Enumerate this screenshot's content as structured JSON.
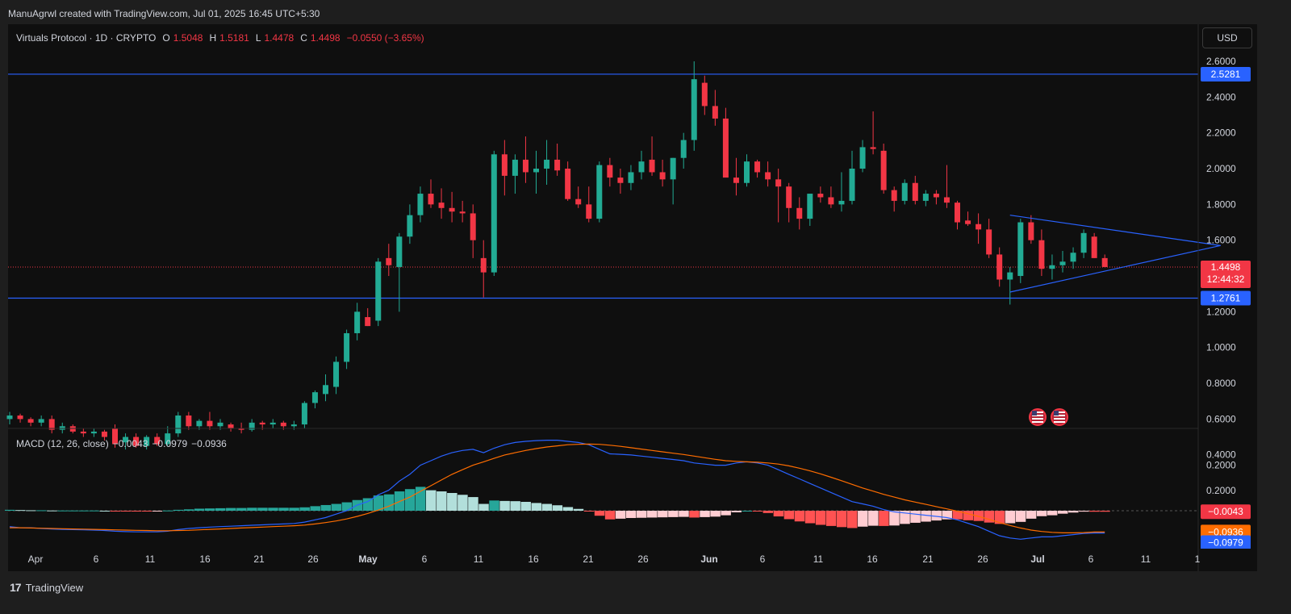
{
  "header": {
    "attribution": "ManuAgrwl created with TradingView.com, Jul 01, 2025 16:45 UTC+5:30"
  },
  "legend": {
    "symbol": "Virtuals Protocol · 1D · CRYPTO",
    "o_label": "O",
    "o": "1.5048",
    "h_label": "H",
    "h": "1.5181",
    "l_label": "L",
    "l": "1.4478",
    "c_label": "C",
    "c": "1.4498",
    "change": "−0.0550 (−3.65%)"
  },
  "currency_button": "USD",
  "macd_legend": {
    "label": "MACD (12, 26, close)",
    "hist": "−0.0043",
    "macd": "−0.0979",
    "signal": "−0.0936"
  },
  "footer": {
    "brand": "TradingView",
    "logo_text": "17"
  },
  "colors": {
    "up": "#22ab94",
    "down": "#f23645",
    "line": "#2962ff",
    "signal": "#ff6d00"
  },
  "chart_data": [
    {
      "type": "candlestick",
      "title": "Virtuals Protocol · 1D · CRYPTO",
      "ylim": [
        0.15,
        2.75
      ],
      "y_ticks": [
        "2.6000",
        "2.4000",
        "2.2000",
        "2.0000",
        "1.8000",
        "1.6000",
        "1.4000",
        "1.2000",
        "1.0000",
        "0.8000",
        "0.6000",
        "0.4000",
        "0.2000"
      ],
      "x_ticks": [
        "Apr",
        "6",
        "11",
        "16",
        "21",
        "26",
        "May",
        "6",
        "11",
        "16",
        "21",
        "26",
        "Jun",
        "6",
        "11",
        "16",
        "21",
        "26",
        "Jul",
        "6",
        "11",
        "1"
      ],
      "start_date": "2025-03-31",
      "ohlc": [
        [
          0.6,
          0.64,
          0.57,
          0.62
        ],
        [
          0.62,
          0.63,
          0.58,
          0.6
        ],
        [
          0.6,
          0.61,
          0.56,
          0.58
        ],
        [
          0.58,
          0.62,
          0.56,
          0.6
        ],
        [
          0.6,
          0.62,
          0.52,
          0.54
        ],
        [
          0.54,
          0.58,
          0.52,
          0.56
        ],
        [
          0.56,
          0.57,
          0.52,
          0.53
        ],
        [
          0.53,
          0.55,
          0.5,
          0.52
        ],
        [
          0.52,
          0.55,
          0.5,
          0.53
        ],
        [
          0.53,
          0.54,
          0.48,
          0.5
        ],
        [
          0.55,
          0.57,
          0.44,
          0.46
        ],
        [
          0.47,
          0.52,
          0.43,
          0.5
        ],
        [
          0.5,
          0.52,
          0.44,
          0.45
        ],
        [
          0.45,
          0.51,
          0.43,
          0.5
        ],
        [
          0.5,
          0.52,
          0.45,
          0.46
        ],
        [
          0.46,
          0.56,
          0.45,
          0.52
        ],
        [
          0.52,
          0.64,
          0.5,
          0.62
        ],
        [
          0.62,
          0.64,
          0.54,
          0.56
        ],
        [
          0.56,
          0.6,
          0.54,
          0.59
        ],
        [
          0.59,
          0.64,
          0.54,
          0.56
        ],
        [
          0.56,
          0.6,
          0.54,
          0.58
        ],
        [
          0.57,
          0.58,
          0.53,
          0.55
        ],
        [
          0.55,
          0.58,
          0.52,
          0.54
        ],
        [
          0.54,
          0.6,
          0.53,
          0.58
        ],
        [
          0.58,
          0.59,
          0.54,
          0.57
        ],
        [
          0.57,
          0.6,
          0.55,
          0.58
        ],
        [
          0.58,
          0.59,
          0.54,
          0.56
        ],
        [
          0.56,
          0.59,
          0.54,
          0.57
        ],
        [
          0.57,
          0.7,
          0.55,
          0.69
        ],
        [
          0.69,
          0.76,
          0.66,
          0.75
        ],
        [
          0.74,
          0.85,
          0.7,
          0.79
        ],
        [
          0.78,
          0.95,
          0.74,
          0.92
        ],
        [
          0.92,
          1.1,
          0.88,
          1.08
        ],
        [
          1.08,
          1.25,
          1.04,
          1.2
        ],
        [
          1.17,
          1.22,
          1.12,
          1.12
        ],
        [
          1.15,
          1.5,
          1.12,
          1.48
        ],
        [
          1.5,
          1.58,
          1.4,
          1.46
        ],
        [
          1.45,
          1.64,
          1.2,
          1.62
        ],
        [
          1.62,
          1.8,
          1.58,
          1.74
        ],
        [
          1.74,
          1.9,
          1.7,
          1.86
        ],
        [
          1.86,
          1.94,
          1.78,
          1.8
        ],
        [
          1.81,
          1.89,
          1.72,
          1.78
        ],
        [
          1.78,
          1.87,
          1.7,
          1.76
        ],
        [
          1.76,
          1.82,
          1.7,
          1.75
        ],
        [
          1.75,
          1.8,
          1.5,
          1.6
        ],
        [
          1.5,
          1.6,
          1.28,
          1.42
        ],
        [
          1.42,
          2.1,
          1.4,
          2.08
        ],
        [
          2.08,
          2.16,
          1.85,
          1.96
        ],
        [
          1.96,
          2.08,
          1.86,
          2.05
        ],
        [
          2.05,
          2.18,
          1.92,
          1.98
        ],
        [
          1.98,
          2.1,
          1.86,
          2.0
        ],
        [
          2.0,
          2.16,
          1.91,
          2.05
        ],
        [
          2.05,
          2.14,
          1.96,
          1.99
        ],
        [
          2.0,
          2.04,
          1.82,
          1.83
        ],
        [
          1.83,
          1.9,
          1.78,
          1.8
        ],
        [
          1.8,
          1.9,
          1.7,
          1.72
        ],
        [
          1.72,
          2.04,
          1.7,
          2.02
        ],
        [
          2.02,
          2.06,
          1.9,
          1.95
        ],
        [
          1.95,
          2.0,
          1.86,
          1.92
        ],
        [
          1.92,
          2.02,
          1.88,
          1.98
        ],
        [
          1.98,
          2.1,
          1.94,
          2.04
        ],
        [
          2.05,
          2.18,
          1.96,
          1.98
        ],
        [
          1.98,
          2.05,
          1.9,
          1.94
        ],
        [
          1.94,
          2.06,
          1.8,
          2.06
        ],
        [
          2.06,
          2.2,
          2.0,
          2.16
        ],
        [
          2.16,
          2.6,
          2.1,
          2.5
        ],
        [
          2.48,
          2.52,
          2.3,
          2.35
        ],
        [
          2.35,
          2.44,
          2.24,
          2.28
        ],
        [
          2.28,
          2.34,
          1.96,
          1.95
        ],
        [
          1.95,
          2.06,
          1.85,
          1.92
        ],
        [
          1.92,
          2.08,
          1.9,
          2.04
        ],
        [
          2.04,
          2.05,
          1.95,
          1.98
        ],
        [
          1.98,
          2.04,
          1.9,
          1.94
        ],
        [
          1.94,
          2.0,
          1.7,
          1.9
        ],
        [
          1.9,
          1.92,
          1.7,
          1.78
        ],
        [
          1.78,
          1.84,
          1.66,
          1.72
        ],
        [
          1.72,
          1.86,
          1.68,
          1.86
        ],
        [
          1.86,
          1.9,
          1.81,
          1.84
        ],
        [
          1.84,
          1.9,
          1.78,
          1.8
        ],
        [
          1.8,
          1.98,
          1.76,
          1.82
        ],
        [
          1.82,
          2.1,
          1.8,
          2.0
        ],
        [
          2.0,
          2.16,
          1.98,
          2.12
        ],
        [
          2.12,
          2.32,
          2.08,
          2.11
        ],
        [
          2.1,
          2.14,
          1.86,
          1.88
        ],
        [
          1.88,
          1.9,
          1.76,
          1.82
        ],
        [
          1.82,
          1.94,
          1.8,
          1.92
        ],
        [
          1.92,
          1.96,
          1.8,
          1.82
        ],
        [
          1.82,
          1.88,
          1.79,
          1.86
        ],
        [
          1.86,
          1.88,
          1.8,
          1.84
        ],
        [
          1.84,
          2.02,
          1.78,
          1.81
        ],
        [
          1.81,
          1.82,
          1.66,
          1.7
        ],
        [
          1.71,
          1.76,
          1.68,
          1.69
        ],
        [
          1.69,
          1.75,
          1.58,
          1.66
        ],
        [
          1.66,
          1.72,
          1.5,
          1.52
        ],
        [
          1.52,
          1.56,
          1.34,
          1.38
        ],
        [
          1.38,
          1.45,
          1.24,
          1.42
        ],
        [
          1.4,
          1.72,
          1.36,
          1.7
        ],
        [
          1.7,
          1.74,
          1.58,
          1.6
        ],
        [
          1.6,
          1.66,
          1.4,
          1.44
        ],
        [
          1.44,
          1.52,
          1.38,
          1.46
        ],
        [
          1.46,
          1.54,
          1.42,
          1.48
        ],
        [
          1.48,
          1.56,
          1.44,
          1.53
        ],
        [
          1.53,
          1.66,
          1.5,
          1.64
        ],
        [
          1.62,
          1.64,
          1.5,
          1.5
        ],
        [
          1.5,
          1.52,
          1.45,
          1.45
        ]
      ],
      "levels": [
        {
          "value": 2.5281,
          "label": "2.5281"
        },
        {
          "value": 1.2761,
          "label": "1.2761"
        }
      ],
      "last_price": {
        "value": 1.4498,
        "label": "1.4498",
        "countdown": "12:44:32"
      },
      "triangle": {
        "upper": [
          [
            95,
            1.74
          ],
          [
            115,
            1.57
          ]
        ],
        "lower": [
          [
            95,
            1.31
          ],
          [
            115,
            1.57
          ]
        ]
      }
    },
    {
      "type": "line",
      "title": "MACD (12, 26, close)",
      "y_ticks": [
        "0.2000"
      ],
      "ylim": [
        -0.2,
        0.3
      ],
      "series": [
        {
          "name": "MACD",
          "color": "#2962ff",
          "values": [
            -0.07,
            -0.075,
            -0.075,
            -0.078,
            -0.08,
            -0.082,
            -0.083,
            -0.084,
            -0.085,
            -0.087,
            -0.09,
            -0.092,
            -0.093,
            -0.093,
            -0.093,
            -0.09,
            -0.083,
            -0.078,
            -0.075,
            -0.072,
            -0.07,
            -0.068,
            -0.066,
            -0.064,
            -0.062,
            -0.06,
            -0.058,
            -0.056,
            -0.05,
            -0.04,
            -0.03,
            -0.015,
            0.0,
            0.025,
            0.04,
            0.07,
            0.09,
            0.13,
            0.16,
            0.2,
            0.22,
            0.24,
            0.255,
            0.265,
            0.27,
            0.255,
            0.275,
            0.29,
            0.3,
            0.305,
            0.308,
            0.31,
            0.31,
            0.305,
            0.3,
            0.29,
            0.27,
            0.25,
            0.248,
            0.245,
            0.24,
            0.235,
            0.23,
            0.225,
            0.22,
            0.21,
            0.205,
            0.2,
            0.2,
            0.21,
            0.215,
            0.21,
            0.2,
            0.18,
            0.16,
            0.14,
            0.12,
            0.1,
            0.08,
            0.06,
            0.04,
            0.03,
            0.02,
            0.005,
            -0.005,
            -0.01,
            -0.015,
            -0.02,
            -0.025,
            -0.03,
            -0.04,
            -0.055,
            -0.07,
            -0.09,
            -0.11,
            -0.12,
            -0.125,
            -0.12,
            -0.115,
            -0.115,
            -0.11,
            -0.105,
            -0.1,
            -0.098,
            -0.098
          ]
        },
        {
          "name": "Signal",
          "color": "#ff6d00",
          "values": [
            -0.075,
            -0.075,
            -0.076,
            -0.077,
            -0.078,
            -0.079,
            -0.08,
            -0.081,
            -0.082,
            -0.083,
            -0.084,
            -0.085,
            -0.086,
            -0.087,
            -0.088,
            -0.088,
            -0.087,
            -0.086,
            -0.084,
            -0.082,
            -0.08,
            -0.078,
            -0.076,
            -0.074,
            -0.072,
            -0.07,
            -0.068,
            -0.066,
            -0.063,
            -0.058,
            -0.052,
            -0.045,
            -0.036,
            -0.025,
            -0.012,
            0.003,
            0.02,
            0.04,
            0.06,
            0.085,
            0.11,
            0.135,
            0.16,
            0.18,
            0.2,
            0.215,
            0.23,
            0.245,
            0.255,
            0.265,
            0.273,
            0.28,
            0.285,
            0.29,
            0.292,
            0.293,
            0.292,
            0.288,
            0.283,
            0.277,
            0.271,
            0.265,
            0.259,
            0.253,
            0.247,
            0.24,
            0.233,
            0.226,
            0.22,
            0.217,
            0.215,
            0.213,
            0.21,
            0.205,
            0.197,
            0.187,
            0.175,
            0.162,
            0.147,
            0.132,
            0.116,
            0.1,
            0.086,
            0.072,
            0.06,
            0.048,
            0.038,
            0.028,
            0.018,
            0.008,
            -0.002,
            -0.013,
            -0.025,
            -0.038,
            -0.052,
            -0.065,
            -0.076,
            -0.085,
            -0.091,
            -0.095,
            -0.097,
            -0.097,
            -0.096,
            -0.0936,
            -0.0936
          ]
        }
      ],
      "histogram": [
        0.004,
        0.003,
        0.002,
        0.002,
        0.001,
        0.001,
        0.001,
        0.001,
        0.001,
        0.0,
        -0.001,
        -0.002,
        -0.003,
        -0.003,
        -0.002,
        0.001,
        0.004,
        0.006,
        0.009,
        0.01,
        0.011,
        0.012,
        0.012,
        0.013,
        0.013,
        0.013,
        0.013,
        0.013,
        0.015,
        0.02,
        0.025,
        0.03,
        0.037,
        0.047,
        0.055,
        0.067,
        0.072,
        0.085,
        0.095,
        0.105,
        0.09,
        0.085,
        0.078,
        0.07,
        0.06,
        0.03,
        0.045,
        0.043,
        0.042,
        0.039,
        0.034,
        0.03,
        0.024,
        0.016,
        0.008,
        -0.003,
        -0.022,
        -0.038,
        -0.035,
        -0.032,
        -0.031,
        -0.03,
        -0.029,
        -0.028,
        -0.027,
        -0.03,
        -0.028,
        -0.026,
        -0.02,
        -0.007,
        0.0,
        -0.003,
        -0.01,
        -0.025,
        -0.037,
        -0.047,
        -0.055,
        -0.062,
        -0.067,
        -0.072,
        -0.076,
        -0.07,
        -0.066,
        -0.067,
        -0.065,
        -0.058,
        -0.053,
        -0.048,
        -0.043,
        -0.038,
        -0.038,
        -0.042,
        -0.045,
        -0.052,
        -0.058,
        -0.055,
        -0.049,
        -0.035,
        -0.024,
        -0.02,
        -0.013,
        -0.008,
        -0.004,
        -0.0043,
        -0.0043
      ],
      "labels": {
        "hist": "−0.0043",
        "signal": "−0.0936",
        "macd": "−0.0979"
      }
    }
  ]
}
